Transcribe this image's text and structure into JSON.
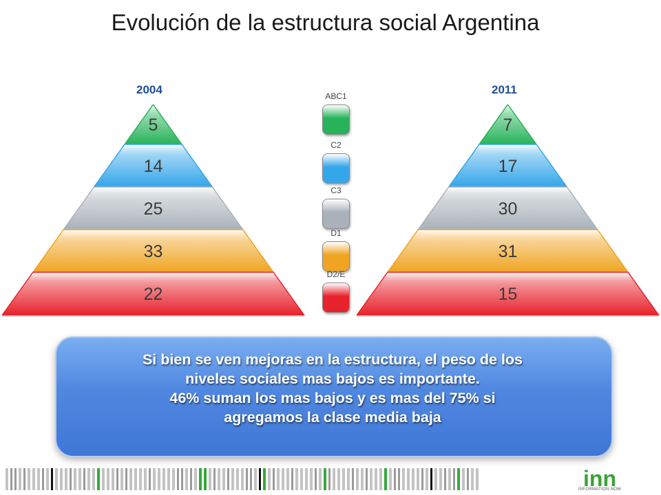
{
  "chart_data": {
    "type": "pyramid",
    "title": "Evolución de la estructura social Argentina",
    "categories": [
      "ABC1",
      "C2",
      "C3",
      "D1",
      "D2/E"
    ],
    "series": [
      {
        "name": "2004",
        "values": [
          5,
          14,
          25,
          33,
          22
        ]
      },
      {
        "name": "2011",
        "values": [
          7,
          17,
          30,
          31,
          15
        ]
      }
    ],
    "legend": "center",
    "colors": [
      "#27b35a",
      "#34a6ea",
      "#a9b2ba",
      "#f0a422",
      "#e8222c"
    ]
  },
  "callout": {
    "lines": [
      "Si bien se ven mejoras en la estructura, el peso de los",
      "niveles sociales mas bajos es importante.",
      "46% suman los mas bajos y es mas del 75% si",
      "agregamos la clase media baja"
    ]
  },
  "logo": {
    "text": "inn",
    "subtext": "INFORMATION NOW",
    "color": "#3aa535"
  }
}
